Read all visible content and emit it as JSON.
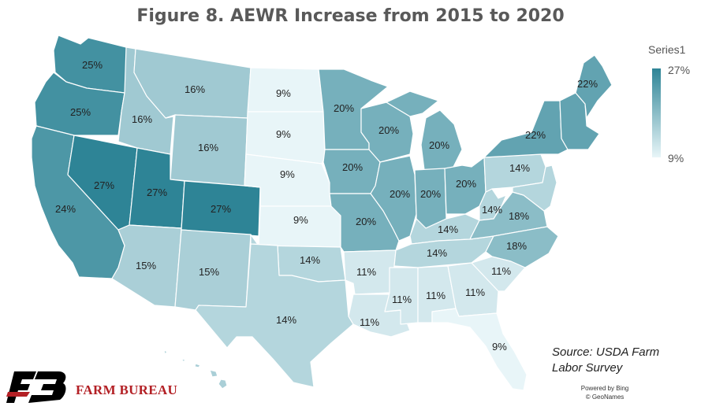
{
  "title": "Figure 8. AEWR Increase from 2015 to 2020",
  "legend": {
    "title": "Series1",
    "max_label": "27%",
    "min_label": "9%",
    "max_color": "#2e8496",
    "min_color": "#e8f5f8"
  },
  "source": {
    "line1": "Source: USDA Farm",
    "line2": "Labor Survey"
  },
  "logo": {
    "text": "FARM BUREAU",
    "mark": "FB"
  },
  "credits": {
    "line1": "Powered by Bing",
    "line2": "© GeoNames"
  },
  "regions": [
    {
      "name": "WA",
      "label": "25%",
      "value": 25
    },
    {
      "name": "OR",
      "label": "25%",
      "value": 25
    },
    {
      "name": "CA",
      "label": "24%",
      "value": 24
    },
    {
      "name": "NV",
      "label": "27%",
      "value": 27
    },
    {
      "name": "ID",
      "label": "16%",
      "value": 16
    },
    {
      "name": "MT",
      "label": "16%",
      "value": 16
    },
    {
      "name": "WY",
      "label": "16%",
      "value": 16
    },
    {
      "name": "UT",
      "label": "27%",
      "value": 27
    },
    {
      "name": "CO",
      "label": "27%",
      "value": 27
    },
    {
      "name": "AZ",
      "label": "15%",
      "value": 15
    },
    {
      "name": "NM",
      "label": "15%",
      "value": 15
    },
    {
      "name": "ND",
      "label": "9%",
      "value": 9
    },
    {
      "name": "SD",
      "label": "9%",
      "value": 9
    },
    {
      "name": "NE",
      "label": "9%",
      "value": 9
    },
    {
      "name": "KS",
      "label": "9%",
      "value": 9
    },
    {
      "name": "OK",
      "label": "14%",
      "value": 14
    },
    {
      "name": "TX",
      "label": "14%",
      "value": 14
    },
    {
      "name": "MN",
      "label": "20%",
      "value": 20
    },
    {
      "name": "IA",
      "label": "20%",
      "value": 20
    },
    {
      "name": "MO",
      "label": "20%",
      "value": 20
    },
    {
      "name": "WI",
      "label": "20%",
      "value": 20
    },
    {
      "name": "IL",
      "label": "20%",
      "value": 20
    },
    {
      "name": "MI",
      "label": "20%",
      "value": 20
    },
    {
      "name": "IN",
      "label": "20%",
      "value": 20
    },
    {
      "name": "OH",
      "label": "20%",
      "value": 20
    },
    {
      "name": "AR",
      "label": "11%",
      "value": 11
    },
    {
      "name": "LA",
      "label": "11%",
      "value": 11
    },
    {
      "name": "MS",
      "label": "11%",
      "value": 11
    },
    {
      "name": "AL",
      "label": "11%",
      "value": 11
    },
    {
      "name": "GA",
      "label": "11%",
      "value": 11
    },
    {
      "name": "SC",
      "label": "11%",
      "value": 11
    },
    {
      "name": "FL",
      "label": "9%",
      "value": 9
    },
    {
      "name": "KY",
      "label": "14%",
      "value": 14
    },
    {
      "name": "TN",
      "label": "14%",
      "value": 14
    },
    {
      "name": "WV",
      "label": "14%",
      "value": 14
    },
    {
      "name": "PA",
      "label": "14%",
      "value": 14
    },
    {
      "name": "VA",
      "label": "18%",
      "value": 18
    },
    {
      "name": "NC",
      "label": "18%",
      "value": 18
    },
    {
      "name": "NY",
      "label": "22%",
      "value": 22
    },
    {
      "name": "ME",
      "label": "22%",
      "value": 22
    },
    {
      "name": "NE-small",
      "label": "",
      "value": 22
    },
    {
      "name": "NJ-MD-DE",
      "label": "",
      "value": 14
    },
    {
      "name": "HI",
      "label": "",
      "value": 15
    }
  ]
}
